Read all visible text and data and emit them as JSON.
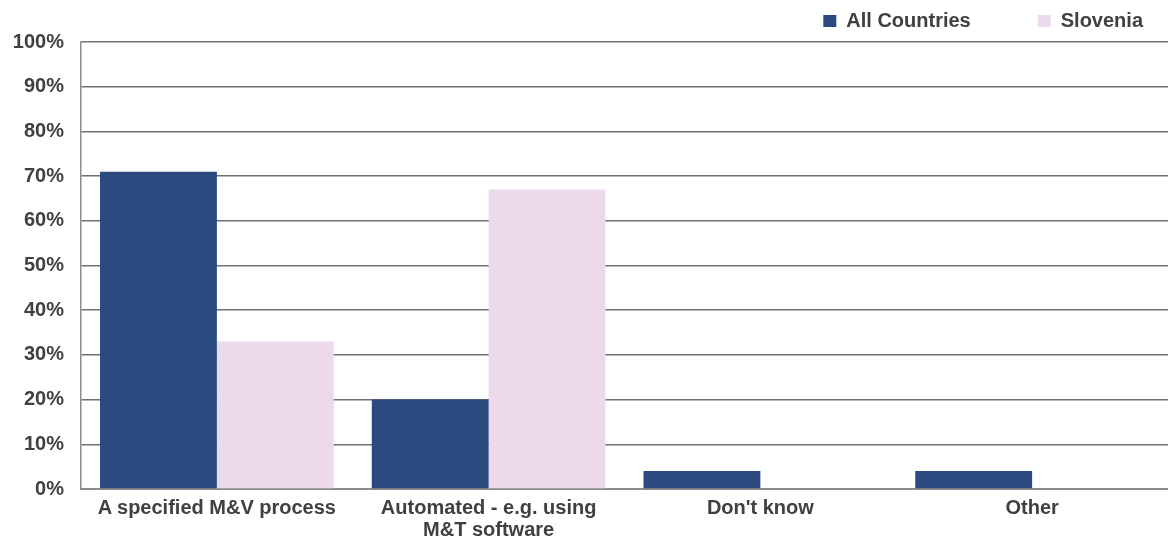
{
  "chart_data": {
    "type": "bar",
    "categories": [
      "A specified M&V process",
      "Automated - e.g. using M&T software",
      "Don't know",
      "Other"
    ],
    "series": [
      {
        "name": "All Countries",
        "color": "#2a4a80",
        "values": [
          71,
          20,
          4,
          4
        ]
      },
      {
        "name": "Slovenia",
        "color": "#ecd9ec",
        "values": [
          33,
          67,
          0,
          0
        ]
      }
    ],
    "ylim": [
      0,
      100
    ],
    "yticks": [
      {
        "value": 0,
        "label": "0%"
      },
      {
        "value": 10,
        "label": "10%"
      },
      {
        "value": 20,
        "label": "20%"
      },
      {
        "value": 30,
        "label": "30%"
      },
      {
        "value": 40,
        "label": "40%"
      },
      {
        "value": 50,
        "label": "50%"
      },
      {
        "value": 60,
        "label": "60%"
      },
      {
        "value": 70,
        "label": "70%"
      },
      {
        "value": 80,
        "label": "80%"
      },
      {
        "value": 90,
        "label": "90%"
      },
      {
        "value": 100,
        "label": "100%"
      }
    ],
    "grid": "y",
    "legend": "top right"
  }
}
